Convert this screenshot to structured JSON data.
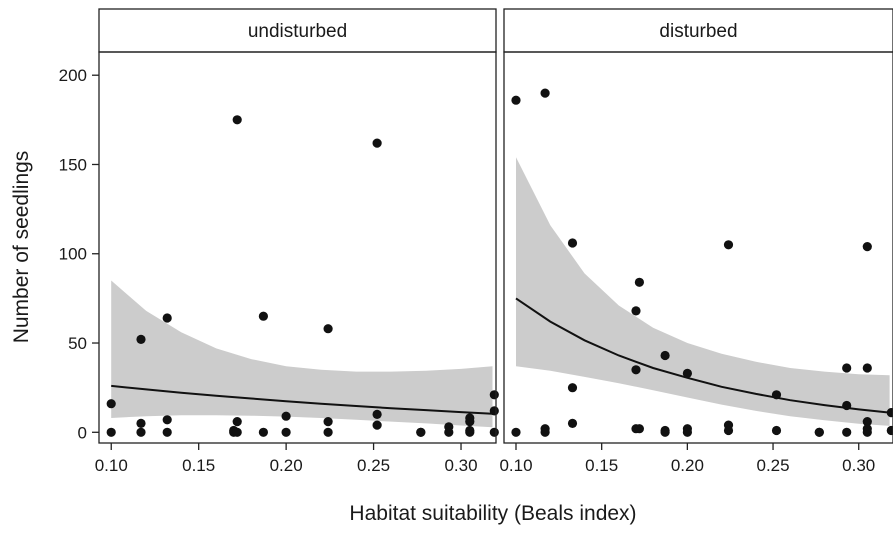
{
  "chart_data": {
    "type": "scatter",
    "xlabel": "Habitat suitability (Beals index)",
    "ylabel": "Number of seedlings",
    "xlim": [
      0.093,
      0.32
    ],
    "ylim": [
      -6,
      213
    ],
    "x_ticks": [
      "0.10",
      "0.15",
      "0.20",
      "0.25",
      "0.30"
    ],
    "y_ticks": [
      "0",
      "50",
      "100",
      "150",
      "200"
    ],
    "grid": false,
    "colors": {
      "points": "#111111",
      "band": "#cccccc",
      "line": "#111111"
    },
    "panels": [
      {
        "strip": "undisturbed",
        "points": [
          [
            0.1,
            16
          ],
          [
            0.1,
            0
          ],
          [
            0.117,
            52
          ],
          [
            0.117,
            5
          ],
          [
            0.117,
            0
          ],
          [
            0.132,
            64
          ],
          [
            0.132,
            7
          ],
          [
            0.132,
            0
          ],
          [
            0.17,
            1
          ],
          [
            0.17,
            0
          ],
          [
            0.172,
            175
          ],
          [
            0.172,
            6
          ],
          [
            0.172,
            0
          ],
          [
            0.187,
            65
          ],
          [
            0.187,
            0
          ],
          [
            0.2,
            9
          ],
          [
            0.2,
            0
          ],
          [
            0.224,
            58
          ],
          [
            0.224,
            6
          ],
          [
            0.224,
            0
          ],
          [
            0.252,
            162
          ],
          [
            0.252,
            10
          ],
          [
            0.252,
            4
          ],
          [
            0.277,
            0
          ],
          [
            0.277,
            0
          ],
          [
            0.293,
            3
          ],
          [
            0.293,
            0
          ],
          [
            0.305,
            8
          ],
          [
            0.305,
            6
          ],
          [
            0.305,
            1
          ],
          [
            0.305,
            0
          ],
          [
            0.319,
            21
          ],
          [
            0.319,
            12
          ],
          [
            0.319,
            0
          ]
        ],
        "fit": {
          "x": [
            0.1,
            0.12,
            0.14,
            0.16,
            0.18,
            0.2,
            0.22,
            0.24,
            0.26,
            0.28,
            0.3,
            0.318
          ],
          "y": [
            26,
            24,
            22.2,
            20.5,
            18.9,
            17.4,
            16,
            14.7,
            13.5,
            12.4,
            11.3,
            10.4
          ],
          "upper": [
            85,
            68,
            56,
            47,
            41,
            37,
            35,
            34,
            34,
            34.5,
            35.5,
            37
          ],
          "lower": [
            8,
            9,
            9.5,
            9.5,
            9.3,
            8.8,
            8,
            7,
            6,
            5,
            3.8,
            2.8
          ]
        }
      },
      {
        "strip": "disturbed",
        "points": [
          [
            0.1,
            186
          ],
          [
            0.1,
            0
          ],
          [
            0.117,
            190
          ],
          [
            0.117,
            2
          ],
          [
            0.117,
            0
          ],
          [
            0.133,
            106
          ],
          [
            0.133,
            25
          ],
          [
            0.133,
            5
          ],
          [
            0.17,
            68
          ],
          [
            0.17,
            35
          ],
          [
            0.17,
            2
          ],
          [
            0.172,
            84
          ],
          [
            0.172,
            2
          ],
          [
            0.187,
            43
          ],
          [
            0.187,
            1
          ],
          [
            0.187,
            0
          ],
          [
            0.2,
            33
          ],
          [
            0.2,
            2
          ],
          [
            0.2,
            0
          ],
          [
            0.224,
            105
          ],
          [
            0.224,
            4
          ],
          [
            0.224,
            1
          ],
          [
            0.252,
            21
          ],
          [
            0.252,
            1
          ],
          [
            0.277,
            0
          ],
          [
            0.277,
            0
          ],
          [
            0.293,
            36
          ],
          [
            0.293,
            15
          ],
          [
            0.293,
            0
          ],
          [
            0.305,
            104
          ],
          [
            0.305,
            36
          ],
          [
            0.305,
            6
          ],
          [
            0.305,
            2
          ],
          [
            0.305,
            0
          ],
          [
            0.319,
            11
          ],
          [
            0.319,
            1
          ]
        ],
        "fit": {
          "x": [
            0.1,
            0.12,
            0.14,
            0.16,
            0.18,
            0.2,
            0.22,
            0.24,
            0.26,
            0.28,
            0.3,
            0.318
          ],
          "y": [
            75,
            62,
            51.5,
            43,
            36,
            30.5,
            25.5,
            21.5,
            18,
            15.2,
            12.8,
            11
          ],
          "upper": [
            154,
            116,
            89,
            71,
            58.5,
            50,
            44,
            39.5,
            36,
            34,
            32.5,
            32
          ],
          "lower": [
            37,
            34.5,
            31,
            27.5,
            23.5,
            19.5,
            15.5,
            12,
            9,
            6.7,
            4.8,
            3.6
          ]
        }
      }
    ]
  }
}
